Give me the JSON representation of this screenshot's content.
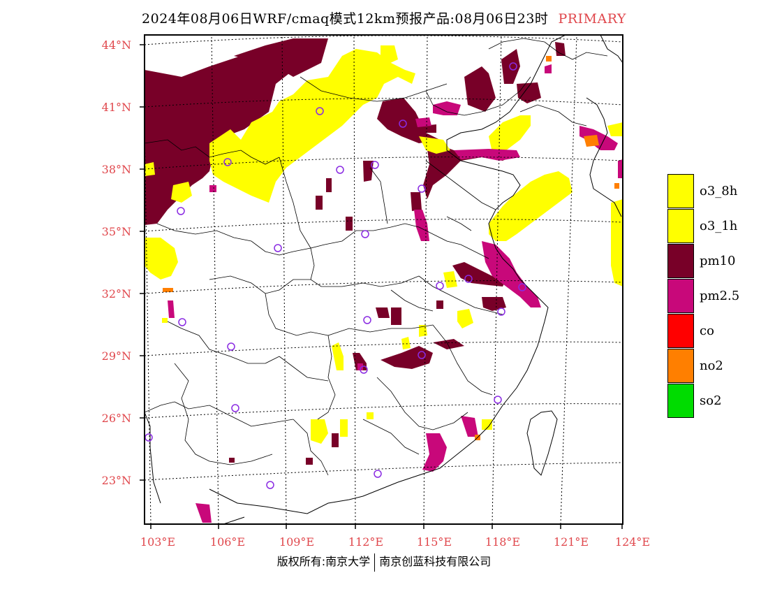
{
  "header": {
    "title": "2024年08月06日WRF/cmaq模式12km预报产品:08月06日23时",
    "tag": "PRIMARY"
  },
  "axes": {
    "lat_labels": [
      "44°N",
      "41°N",
      "38°N",
      "35°N",
      "32°N",
      "29°N",
      "26°N",
      "23°N"
    ],
    "lon_labels": [
      "103°E",
      "106°E",
      "109°E",
      "112°E",
      "115°E",
      "118°E",
      "121°E",
      "124°E"
    ]
  },
  "legend": {
    "items": [
      {
        "label": "o3_8h",
        "color": "#ffff00"
      },
      {
        "label": "o3_1h",
        "color": "#ffff00"
      },
      {
        "label": "pm10",
        "color": "#780028"
      },
      {
        "label": "pm2.5",
        "color": "#c8087a"
      },
      {
        "label": "co",
        "color": "#ff0000"
      },
      {
        "label": "no2",
        "color": "#ff7f00"
      },
      {
        "label": "so2",
        "color": "#00dc00"
      }
    ]
  },
  "footer": {
    "left": "版权所有:南京大学",
    "right": "南京创蓝科技有限公司"
  },
  "colors": {
    "label_red": "#e0474c",
    "o3": "#ffff00",
    "pm10": "#780028",
    "pm25": "#c8087a",
    "no2": "#ff7f00",
    "station": "#8a2be2"
  }
}
